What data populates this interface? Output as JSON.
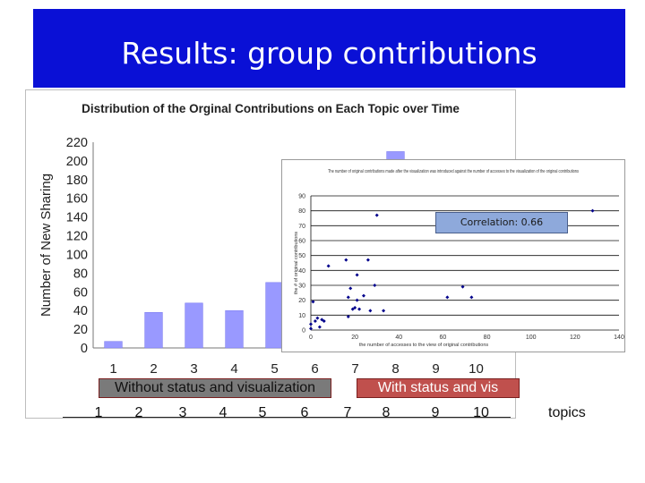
{
  "slide_title": "Results: group contributions",
  "chart_data": [
    {
      "type": "bar",
      "title": "Distribution of the Orginal Contributions on Each Topic over Time",
      "xlabel": "",
      "ylabel": "Number of New Sharing",
      "categories": [
        "1",
        "2",
        "3",
        "4",
        "5",
        "6",
        "7",
        "8",
        "9",
        "10"
      ],
      "values": [
        7,
        38,
        48,
        40,
        70,
        null,
        null,
        210,
        null,
        null
      ],
      "ylim": [
        0,
        220
      ],
      "yticks": [
        "0",
        "20",
        "40",
        "60",
        "80",
        "100",
        "120",
        "140",
        "160",
        "180",
        "200",
        "220"
      ],
      "bar_color": "#9999ff",
      "grid": false
    },
    {
      "type": "scatter",
      "title": "The number of original contributions made after the visualization was introduced against the number of accesses to the visualization of the original contributions",
      "xlabel": "the number of accesses to the view of original contributions",
      "ylabel": "the # of original contributions",
      "xlim": [
        0,
        140
      ],
      "ylim": [
        0,
        90
      ],
      "xticks": [
        "0",
        "20",
        "40",
        "60",
        "80",
        "100",
        "120",
        "140"
      ],
      "yticks": [
        "0",
        "10",
        "20",
        "30",
        "40",
        "50",
        "60",
        "70",
        "80",
        "90"
      ],
      "grid": true,
      "point_color": "#00008b",
      "x": [
        0,
        0,
        1,
        2,
        3,
        4,
        5,
        6,
        8,
        16,
        17,
        17,
        18,
        19,
        20,
        21,
        21,
        22,
        24,
        26,
        27,
        29,
        30,
        33,
        62,
        69,
        73,
        128
      ],
      "y": [
        1,
        4,
        19,
        6,
        8,
        2,
        7,
        6,
        43,
        47,
        9,
        22,
        28,
        14,
        15,
        37,
        20,
        14,
        23,
        47,
        13,
        30,
        77,
        13,
        22,
        29,
        22,
        80
      ]
    }
  ],
  "correlation_label": "Correlation: 0.66",
  "group_labels": {
    "without": "Without status and visualization",
    "with": "With status and vis"
  },
  "topic_numbers": [
    "1",
    "2",
    "3",
    "4",
    "5",
    "6",
    "7",
    "8",
    "9",
    "10"
  ],
  "topics_label": "topics",
  "colors": {
    "banner": "#0a10d6",
    "bars": "#9999ff",
    "badge": "#8ea9db",
    "without_label": "#7a7a7a",
    "with_label": "#c0504d"
  }
}
